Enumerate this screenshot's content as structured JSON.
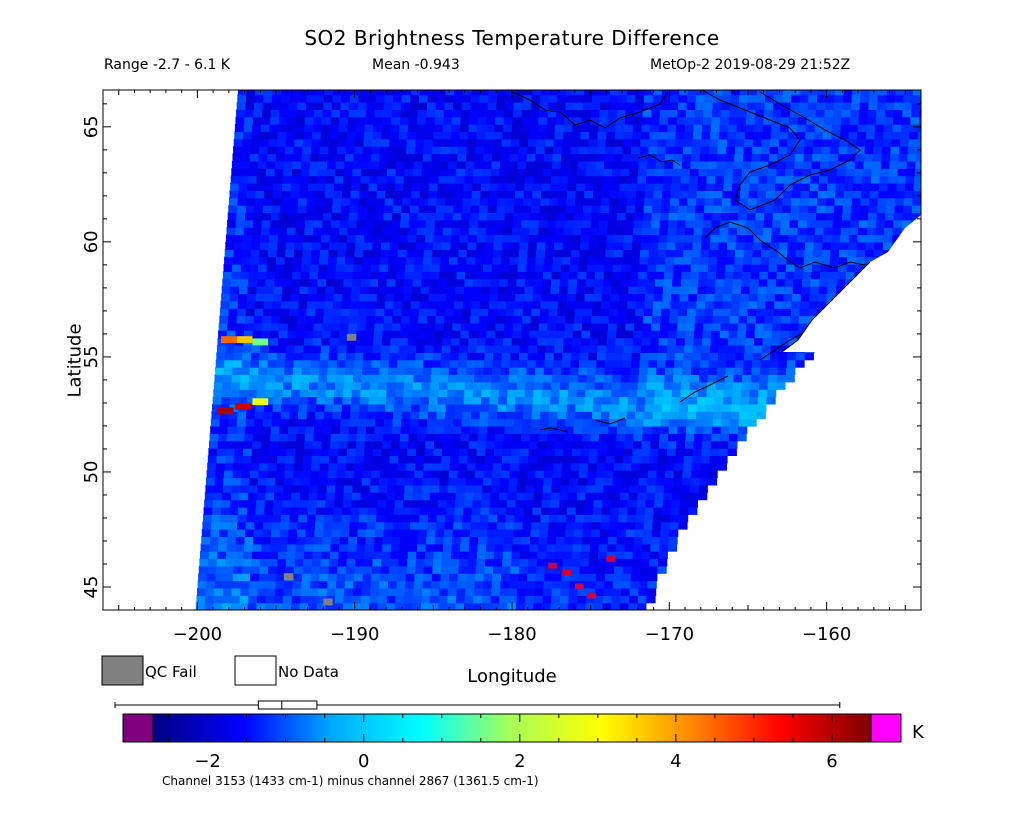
{
  "chart_data": {
    "type": "heatmap",
    "title": "SO2 Brightness Temperature Difference",
    "range_text": "Range -2.7 - 6.1 K",
    "mean_text": "Mean -0.943",
    "source_text": "MetOp-2 2019-08-29 21:52Z",
    "xlabel": "Longitude",
    "ylabel": "Latitude",
    "xlim": [
      -206,
      -154
    ],
    "ylim": [
      44,
      66.6
    ],
    "x_ticks": [
      -200,
      -190,
      -180,
      -170,
      -160
    ],
    "y_ticks": [
      45,
      50,
      55,
      60,
      65
    ],
    "x_tick_labels": [
      "−200",
      "−190",
      "−180",
      "−170",
      "−160"
    ],
    "y_tick_labels": [
      "45",
      "50",
      "55",
      "60",
      "65"
    ],
    "legend": [
      {
        "label": "QC Fail",
        "color": "#808080"
      },
      {
        "label": "No Data",
        "color": "#ffffff"
      }
    ],
    "colorbar": {
      "min": -2.7,
      "max": 6.5,
      "ticks": [
        -2,
        0,
        2,
        4,
        6
      ],
      "tick_labels": [
        "−2",
        "0",
        "2",
        "4",
        "6"
      ],
      "unit": "K",
      "under_color": "#800080",
      "over_color": "#ff00ff",
      "stops": [
        "#000080",
        "#0000ff",
        "#00aaff",
        "#00ffff",
        "#aaff55",
        "#ffff00",
        "#ff8800",
        "#ff0000",
        "#800000"
      ],
      "boxplot": {
        "min": -2.7,
        "q1": -1.35,
        "median": -1.05,
        "q3": -0.6,
        "max": 6.1
      }
    },
    "footnote": "Channel 3153 (1433 cm-1) minus channel 2867 (1361.5 cm-1)",
    "features": [
      {
        "name": "SO2 band",
        "lat_center": 53.0,
        "value": 0.5
      },
      {
        "name": "Hot pixels west edge",
        "points": [
          [
            -198.5,
            55.6,
            4.5
          ],
          [
            -197.5,
            55.6,
            3.6
          ],
          [
            -196.5,
            55.5,
            1.5
          ],
          [
            -198.7,
            52.5,
            6.1
          ],
          [
            -197.6,
            52.7,
            5.8
          ],
          [
            -196.5,
            52.9,
            2.8
          ]
        ]
      },
      {
        "name": "QC fail pixels",
        "points": [
          [
            -190.5,
            55.7
          ],
          [
            -194.5,
            45.3
          ],
          [
            -192,
            44.2
          ]
        ]
      }
    ]
  }
}
